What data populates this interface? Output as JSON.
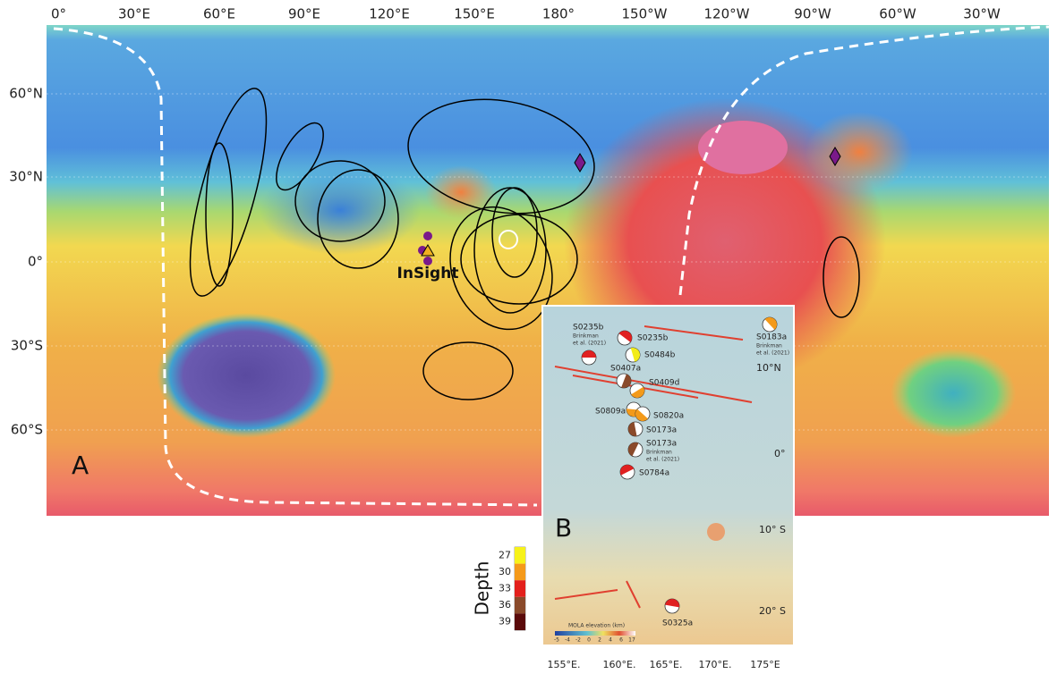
{
  "top_axis": [
    "0°",
    "30°E",
    "60°E",
    "90°E",
    "120°E",
    "150°E",
    "180°",
    "150°W",
    "120°W",
    "90°W",
    "60°W",
    "30°W"
  ],
  "left_axis": [
    "60°N",
    "30°N",
    "0°",
    "30°S",
    "60°S"
  ],
  "panel_a": {
    "label": "A",
    "station": "InSight"
  },
  "panel_b": {
    "label": "B",
    "events": [
      {
        "name": "S0235b",
        "note": [
          "Brinkman",
          "et al. (2021)"
        ],
        "color": "#e02020"
      },
      {
        "name": "S0235b",
        "color": "#e02020"
      },
      {
        "name": "S0484b",
        "color": "#f2ec1a"
      },
      {
        "name": "S0407a",
        "color": "#8a4a2a"
      },
      {
        "name": "S0409d",
        "color": "#f39a1a"
      },
      {
        "name": "S0809a",
        "color": "#f39a1a"
      },
      {
        "name": "S0820a",
        "color": "#f39a1a"
      },
      {
        "name": "S0173a",
        "color": "#8a4a2a"
      },
      {
        "name": "S0173a",
        "note": [
          "Brinkman",
          "et al. (2021)"
        ],
        "color": "#8a4a2a"
      },
      {
        "name": "S0784a",
        "color": "#e02020"
      },
      {
        "name": "S0325a",
        "color": "#e02020"
      },
      {
        "name": "S0183a",
        "note": [
          "Brinkman",
          "et al. (2021)"
        ],
        "color": "#f39a1a"
      }
    ],
    "right_axis": [
      "10°N",
      "0°",
      "10° S",
      "20° S"
    ],
    "bottom_axis": [
      "155°E.",
      "160°E.",
      "165°E.",
      "170°E.",
      "175°E"
    ],
    "colorbar_title": "MOLA elevation (km)",
    "colorbar_ticks": [
      -5,
      -4,
      -2,
      0,
      2,
      4,
      6,
      17
    ]
  },
  "depth_legend": {
    "title": "Depth",
    "ticks": [
      27,
      30,
      33,
      36,
      39
    ],
    "colors": [
      "#f7f21a",
      "#f59a1a",
      "#e3201c",
      "#8a4a2a",
      "#5a0a0a"
    ]
  }
}
